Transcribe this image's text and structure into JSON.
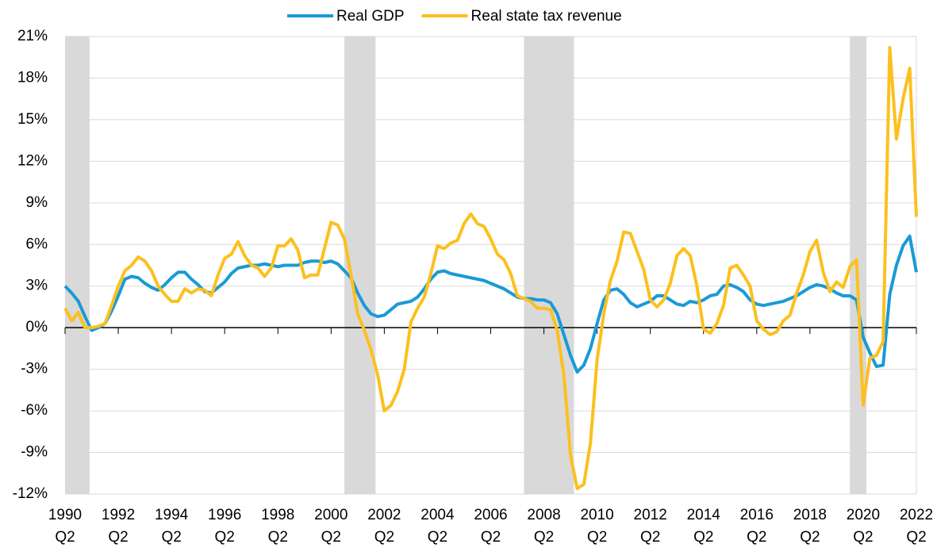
{
  "chart_data": {
    "type": "line",
    "x": [
      1990.25,
      1990.5,
      1990.75,
      1991.0,
      1991.25,
      1991.5,
      1991.75,
      1992.0,
      1992.25,
      1992.5,
      1992.75,
      1993.0,
      1993.25,
      1993.5,
      1993.75,
      1994.0,
      1994.25,
      1994.5,
      1994.75,
      1995.0,
      1995.25,
      1995.5,
      1995.75,
      1996.0,
      1996.25,
      1996.5,
      1996.75,
      1997.0,
      1997.25,
      1997.5,
      1997.75,
      1998.0,
      1998.25,
      1998.5,
      1998.75,
      1999.0,
      1999.25,
      1999.5,
      1999.75,
      2000.0,
      2000.25,
      2000.5,
      2000.75,
      2001.0,
      2001.25,
      2001.5,
      2001.75,
      2002.0,
      2002.25,
      2002.5,
      2002.75,
      2003.0,
      2003.25,
      2003.5,
      2003.75,
      2004.0,
      2004.25,
      2004.5,
      2004.75,
      2005.0,
      2005.25,
      2005.5,
      2005.75,
      2006.0,
      2006.25,
      2006.5,
      2006.75,
      2007.0,
      2007.25,
      2007.5,
      2007.75,
      2008.0,
      2008.25,
      2008.5,
      2008.75,
      2009.0,
      2009.25,
      2009.5,
      2009.75,
      2010.0,
      2010.25,
      2010.5,
      2010.75,
      2011.0,
      2011.25,
      2011.5,
      2011.75,
      2012.0,
      2012.25,
      2012.5,
      2012.75,
      2013.0,
      2013.25,
      2013.5,
      2013.75,
      2014.0,
      2014.25,
      2014.5,
      2014.75,
      2015.0,
      2015.25,
      2015.5,
      2015.75,
      2016.0,
      2016.25,
      2016.5,
      2016.75,
      2017.0,
      2017.25,
      2017.5,
      2017.75,
      2018.0,
      2018.25,
      2018.5,
      2018.75,
      2019.0,
      2019.25,
      2019.5,
      2019.75,
      2020.0,
      2020.25,
      2020.5,
      2020.75,
      2021.0,
      2021.25,
      2021.5,
      2021.75,
      2022.0,
      2022.25
    ],
    "series": [
      {
        "name": "Real GDP",
        "color": "#1a9ad6",
        "values": [
          3.0,
          2.5,
          1.9,
          0.8,
          -0.2,
          0.0,
          0.3,
          1.2,
          2.3,
          3.5,
          3.7,
          3.6,
          3.2,
          2.9,
          2.7,
          3.1,
          3.6,
          4.0,
          4.0,
          3.5,
          3.1,
          2.6,
          2.5,
          2.9,
          3.3,
          3.9,
          4.3,
          4.4,
          4.5,
          4.5,
          4.6,
          4.5,
          4.4,
          4.5,
          4.5,
          4.5,
          4.7,
          4.8,
          4.8,
          4.7,
          4.8,
          4.6,
          4.1,
          3.6,
          2.5,
          1.6,
          1.0,
          0.8,
          0.9,
          1.3,
          1.7,
          1.8,
          1.9,
          2.2,
          2.8,
          3.5,
          4.0,
          4.1,
          3.9,
          3.8,
          3.7,
          3.6,
          3.5,
          3.4,
          3.2,
          3.0,
          2.8,
          2.5,
          2.2,
          2.1,
          2.1,
          2.0,
          2.0,
          1.8,
          1.0,
          -0.5,
          -2.0,
          -3.2,
          -2.7,
          -1.5,
          0.3,
          2.0,
          2.7,
          2.8,
          2.4,
          1.8,
          1.5,
          1.7,
          1.9,
          2.3,
          2.3,
          2.0,
          1.7,
          1.6,
          1.9,
          1.8,
          2.0,
          2.3,
          2.4,
          3.0,
          3.1,
          2.9,
          2.6,
          2.0,
          1.7,
          1.6,
          1.7,
          1.8,
          1.9,
          2.1,
          2.3,
          2.6,
          2.9,
          3.1,
          3.0,
          2.8,
          2.5,
          2.3,
          2.3,
          2.0,
          -0.7,
          -1.8,
          -2.8,
          -2.7,
          2.4,
          4.5,
          5.9,
          6.6,
          4.0
        ]
      },
      {
        "name": "Real state tax revenue",
        "color": "#fcc01e",
        "values": [
          1.4,
          0.5,
          1.1,
          0.0,
          0.0,
          0.1,
          0.3,
          1.6,
          3.0,
          4.1,
          4.5,
          5.1,
          4.8,
          4.1,
          3.0,
          2.4,
          1.9,
          1.9,
          2.8,
          2.5,
          2.8,
          2.7,
          2.3,
          3.8,
          5.0,
          5.3,
          6.2,
          5.2,
          4.5,
          4.3,
          3.7,
          4.3,
          5.9,
          5.9,
          6.4,
          5.6,
          3.6,
          3.8,
          3.8,
          5.7,
          7.6,
          7.4,
          6.4,
          3.8,
          1.0,
          -0.2,
          -1.6,
          -3.4,
          -6.0,
          -5.6,
          -4.6,
          -3.0,
          0.4,
          1.4,
          2.2,
          3.9,
          5.9,
          5.7,
          6.1,
          6.3,
          7.5,
          8.2,
          7.5,
          7.3,
          6.4,
          5.3,
          4.9,
          3.9,
          2.3,
          2.1,
          1.9,
          1.4,
          1.4,
          1.3,
          -0.2,
          -3.4,
          -9.2,
          -11.6,
          -11.3,
          -8.3,
          -2.3,
          1.0,
          3.4,
          4.8,
          6.9,
          6.8,
          5.5,
          4.2,
          2.0,
          1.5,
          2.0,
          3.2,
          5.2,
          5.7,
          5.2,
          3.0,
          -0.1,
          -0.4,
          0.3,
          1.6,
          4.3,
          4.5,
          3.8,
          3.0,
          0.5,
          -0.1,
          -0.5,
          -0.3,
          0.5,
          0.9,
          2.5,
          3.8,
          5.5,
          6.3,
          4.0,
          2.6,
          3.3,
          2.9,
          4.4,
          4.9,
          -5.6,
          -2.2,
          -2.0,
          -1.0,
          20.2,
          13.6,
          16.5,
          18.7,
          8.0
        ]
      }
    ],
    "shaded_periods": [
      [
        1990.25,
        1991.17
      ],
      [
        2000.75,
        2001.92
      ],
      [
        2007.5,
        2009.38
      ],
      [
        2019.75,
        2020.37
      ]
    ],
    "shade_color": "#d9d9d9",
    "xlim": [
      1990.25,
      2022.25
    ],
    "xticks": [
      {
        "value": 1990.25,
        "label": "1990 Q2"
      },
      {
        "value": 1992.25,
        "label": "1992 Q2"
      },
      {
        "value": 1994.25,
        "label": "1994 Q2"
      },
      {
        "value": 1996.25,
        "label": "1996 Q2"
      },
      {
        "value": 1998.25,
        "label": "1998 Q2"
      },
      {
        "value": 2000.25,
        "label": "2000 Q2"
      },
      {
        "value": 2002.25,
        "label": "2002 Q2"
      },
      {
        "value": 2004.25,
        "label": "2004 Q2"
      },
      {
        "value": 2006.25,
        "label": "2006 Q2"
      },
      {
        "value": 2008.25,
        "label": "2008 Q2"
      },
      {
        "value": 2010.25,
        "label": "2010 Q2"
      },
      {
        "value": 2012.25,
        "label": "2012 Q2"
      },
      {
        "value": 2014.25,
        "label": "2014 Q2"
      },
      {
        "value": 2016.25,
        "label": "2016 Q2"
      },
      {
        "value": 2018.25,
        "label": "2018 Q2"
      },
      {
        "value": 2020.25,
        "label": "2020 Q2"
      },
      {
        "value": 2022.25,
        "label": "2022 Q2"
      }
    ],
    "ylim": [
      -12,
      21
    ],
    "yticks": [
      {
        "value": -12,
        "label": "-12%"
      },
      {
        "value": -9,
        "label": "-9%"
      },
      {
        "value": -6,
        "label": "-6%"
      },
      {
        "value": -3,
        "label": "-3%"
      },
      {
        "value": 0,
        "label": "0%"
      },
      {
        "value": 3,
        "label": "3%"
      },
      {
        "value": 6,
        "label": "6%"
      },
      {
        "value": 9,
        "label": "9%"
      },
      {
        "value": 12,
        "label": "12%"
      },
      {
        "value": 15,
        "label": "15%"
      },
      {
        "value": 18,
        "label": "18%"
      },
      {
        "value": 21,
        "label": "21%"
      }
    ],
    "grid": true,
    "legend": "top"
  }
}
